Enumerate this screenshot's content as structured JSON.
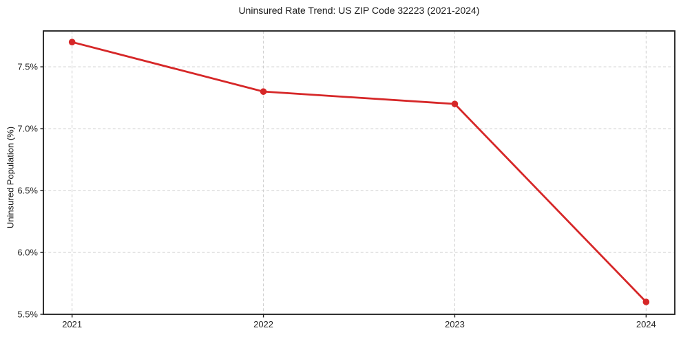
{
  "chart_data": {
    "type": "line",
    "title": "Uninsured Rate Trend: US ZIP Code 32223 (2021-2024)",
    "xlabel": "",
    "ylabel": "Uninsured Population (%)",
    "x": [
      2021,
      2022,
      2023,
      2024
    ],
    "x_tick_labels": [
      "2021",
      "2022",
      "2023",
      "2024"
    ],
    "y_ticks": [
      5.5,
      6.0,
      6.5,
      7.0,
      7.5
    ],
    "y_tick_labels": [
      "5.5%",
      "6.0%",
      "6.5%",
      "7.0%",
      "7.5%"
    ],
    "series": [
      {
        "name": "Uninsured rate",
        "values": [
          7.7,
          7.3,
          7.2,
          5.6
        ],
        "color": "#d62728",
        "marker": "circle"
      }
    ],
    "xlim": [
      2020.85,
      2024.15
    ],
    "ylim": [
      5.5,
      7.79
    ],
    "grid": "both-major-dashed",
    "legend": "none",
    "colors": {
      "line": "#d62728",
      "grid": "#cdcdcd",
      "spine": "#1a1a1a",
      "text": "#262626",
      "background": "#ffffff"
    }
  }
}
